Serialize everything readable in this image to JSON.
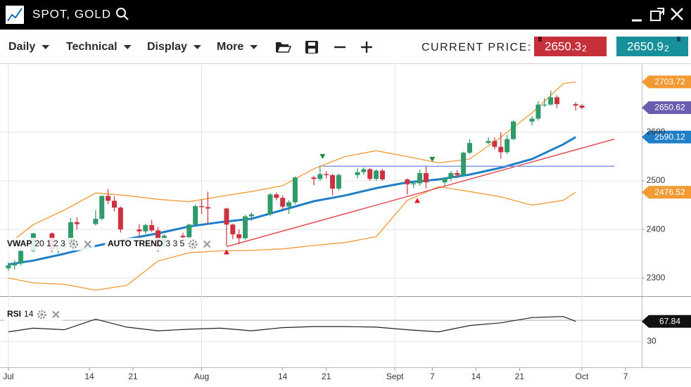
{
  "header": {
    "title": "SPOT, GOLD"
  },
  "toolbar": {
    "menus": [
      "Daily",
      "Technical",
      "Display",
      "More"
    ],
    "current_price_label": "CURRENT PRICE:",
    "bid": {
      "main": "2650.3",
      "pip": "2"
    },
    "ask": {
      "main": "2650.9",
      "pip": "2"
    }
  },
  "chart_data": [
    {
      "type": "candlestick",
      "indicator_labels": [
        {
          "name": "VWAP",
          "params": "20 1 2 3"
        },
        {
          "name": "AUTO TREND",
          "params": "3 3 5"
        }
      ],
      "x": [
        1,
        2,
        3,
        5,
        8,
        9,
        10,
        11,
        12,
        15,
        16,
        17,
        18,
        19,
        22,
        23,
        24,
        25,
        26,
        29,
        30,
        31,
        32,
        33,
        36,
        37,
        38,
        39,
        40,
        43,
        44,
        45,
        46,
        47,
        50,
        51,
        52,
        53,
        54,
        57,
        58,
        59,
        60,
        61,
        65,
        66,
        67,
        68,
        71,
        72,
        73,
        74,
        75,
        78,
        79,
        80,
        81,
        82,
        85,
        86,
        87,
        88,
        89,
        92,
        93
      ],
      "open": [
        2320,
        2326,
        2330,
        2356,
        2392,
        2359,
        2364,
        2371,
        2415,
        2411,
        2422,
        2469,
        2459,
        2445,
        2400,
        2396,
        2409,
        2398,
        2364,
        2387,
        2384,
        2410,
        2448,
        2446,
        2443,
        2410,
        2390,
        2382,
        2427,
        2431,
        2472,
        2465,
        2447,
        2456,
        2507,
        2504,
        2514,
        2512,
        2484,
        2512,
        2518,
        2524,
        2504,
        2521,
        2503,
        2493,
        2495,
        2516,
        2497,
        2506,
        2516,
        2512,
        2558,
        2578,
        2582,
        2570,
        2559,
        2586,
        2622,
        2628,
        2657,
        2657,
        2672,
        2658,
        2655
      ],
      "high": [
        2332,
        2337,
        2364,
        2393,
        2394,
        2370,
        2377,
        2424,
        2425,
        2440,
        2470,
        2483,
        2468,
        2447,
        2411,
        2412,
        2420,
        2405,
        2390,
        2393,
        2412,
        2451,
        2462,
        2478,
        2445,
        2412,
        2400,
        2430,
        2435,
        2475,
        2476,
        2470,
        2460,
        2509,
        2510,
        2532,
        2520,
        2514,
        2515,
        2526,
        2528,
        2526,
        2524,
        2525,
        2505,
        2500,
        2523,
        2530,
        2508,
        2520,
        2522,
        2560,
        2586,
        2590,
        2589,
        2600,
        2595,
        2625,
        2633,
        2664,
        2670,
        2686,
        2676,
        2662,
        2658
      ],
      "low": [
        2315,
        2318,
        2326,
        2353,
        2353,
        2351,
        2357,
        2367,
        2400,
        2408,
        2419,
        2452,
        2437,
        2394,
        2385,
        2391,
        2395,
        2354,
        2360,
        2377,
        2381,
        2406,
        2432,
        2410,
        2365,
        2380,
        2370,
        2379,
        2418,
        2428,
        2460,
        2440,
        2432,
        2452,
        2491,
        2500,
        2505,
        2470,
        2480,
        2505,
        2512,
        2500,
        2500,
        2500,
        2472,
        2485,
        2490,
        2485,
        2490,
        2500,
        2506,
        2508,
        2555,
        2575,
        2565,
        2546,
        2555,
        2584,
        2614,
        2624,
        2652,
        2655,
        2650,
        2645,
        2647
      ],
      "close": [
        2326,
        2330,
        2356,
        2392,
        2359,
        2364,
        2371,
        2415,
        2411,
        2422,
        2469,
        2459,
        2445,
        2400,
        2396,
        2409,
        2398,
        2364,
        2387,
        2384,
        2410,
        2448,
        2446,
        2443,
        2410,
        2390,
        2382,
        2427,
        2431,
        2472,
        2465,
        2447,
        2456,
        2507,
        2504,
        2514,
        2512,
        2484,
        2512,
        2518,
        2524,
        2504,
        2521,
        2503,
        2493,
        2495,
        2516,
        2497,
        2506,
        2516,
        2512,
        2558,
        2578,
        2582,
        2570,
        2559,
        2586,
        2622,
        2628,
        2657,
        2657,
        2672,
        2658,
        2655,
        2650.62
      ],
      "up_color": "#2f9a6a",
      "down_color": "#cc3340",
      "price_tag_color": "#6a5cae",
      "lines": [
        {
          "color": "#f39a35",
          "width": 1.3,
          "x": [
            1,
            5,
            10,
            15,
            20,
            25,
            30,
            35,
            40,
            45,
            50,
            55,
            60,
            65,
            70,
            75,
            80,
            85,
            90,
            92
          ],
          "values": [
            2370,
            2410,
            2440,
            2475,
            2470,
            2462,
            2457,
            2468,
            2478,
            2490,
            2525,
            2550,
            2562,
            2550,
            2537,
            2545,
            2590,
            2640,
            2700,
            2703.72
          ]
        },
        {
          "color": "#f39a35",
          "width": 1.3,
          "x": [
            1,
            5,
            10,
            15,
            20,
            25,
            30,
            35,
            40,
            45,
            50,
            55,
            60,
            65,
            70,
            75,
            80,
            85,
            90,
            92
          ],
          "values": [
            2300,
            2290,
            2287,
            2275,
            2285,
            2335,
            2352,
            2356,
            2357,
            2360,
            2367,
            2373,
            2385,
            2460,
            2488,
            2478,
            2467,
            2450,
            2460,
            2476.52
          ]
        },
        {
          "color": "#1f7fc8",
          "width": 3,
          "x": [
            1,
            5,
            10,
            15,
            20,
            25,
            30,
            35,
            40,
            45,
            50,
            55,
            60,
            65,
            70,
            75,
            80,
            85,
            90,
            92
          ],
          "values": [
            2328,
            2336,
            2350,
            2366,
            2380,
            2392,
            2406,
            2415,
            2422,
            2440,
            2458,
            2470,
            2485,
            2497,
            2503,
            2513,
            2527,
            2545,
            2575,
            2590.12
          ]
        }
      ],
      "trendlines": [
        {
          "color": "#e8424a",
          "x": [
            36.1,
            98.2
          ],
          "values": [
            2365,
            2586
          ]
        },
        {
          "color": "#7d8fe2",
          "x": [
            51.4,
            98.2
          ],
          "values": [
            2530,
            2530
          ]
        }
      ],
      "signals": [
        {
          "x": 36,
          "value": 2353,
          "direction": "up",
          "color": "#e0192b"
        },
        {
          "x": 66.6,
          "value": 2459,
          "direction": "up",
          "color": "#e0192b"
        },
        {
          "x": 51.4,
          "value": 2551,
          "direction": "down",
          "color": "#1f8a3a"
        },
        {
          "x": 69,
          "value": 2545,
          "direction": "down",
          "color": "#1f8a3a"
        }
      ],
      "ylim": [
        2264,
        2739
      ],
      "yticks": [
        2300,
        2400,
        2500,
        2600
      ],
      "grid": true,
      "xlim": [
        -0.34,
        102.6
      ],
      "xticks": [
        {
          "value": 1,
          "label": "Jul"
        },
        14,
        21,
        {
          "value": 32,
          "label": "Aug"
        },
        {
          "value": 45,
          "label": "14"
        },
        {
          "value": 52,
          "label": "21"
        },
        {
          "value": 63,
          "label": "Sept"
        },
        {
          "value": 69,
          "label": "7"
        },
        {
          "value": 76,
          "label": "14"
        },
        {
          "value": 83,
          "label": "21"
        },
        {
          "value": 93,
          "label": "Oct"
        },
        {
          "value": 100,
          "label": "7"
        }
      ]
    },
    {
      "type": "line",
      "indicator_label": {
        "name": "RSI",
        "params": "14"
      },
      "x": [
        1,
        5,
        10,
        15,
        20,
        25,
        30,
        35,
        40,
        45,
        50,
        55,
        60,
        65,
        70,
        75,
        80,
        85,
        90,
        92
      ],
      "values": [
        48,
        55,
        52,
        72,
        57,
        50,
        53,
        55,
        50,
        56,
        58,
        58,
        57,
        52,
        48,
        60,
        65,
        75,
        77,
        67.84
      ],
      "color": "#222222",
      "tag_color": "#111111",
      "ylim": [
        -19,
        114
      ],
      "yticks": [
        30
      ],
      "levels": [
        70
      ]
    }
  ]
}
